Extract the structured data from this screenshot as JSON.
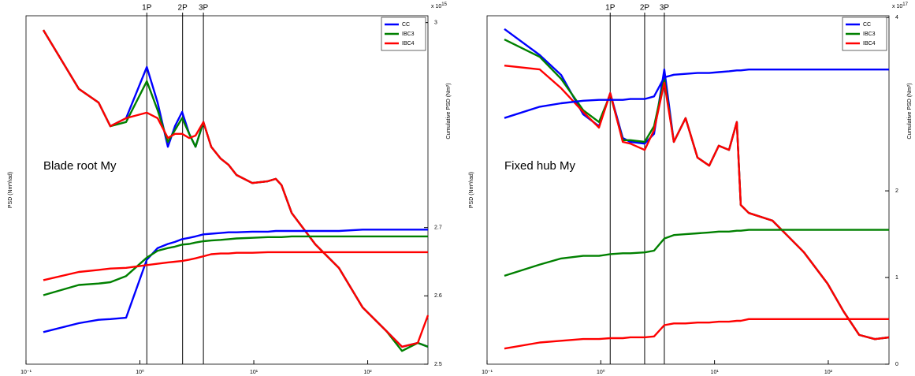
{
  "chart_data": [
    {
      "type": "line",
      "annotation": "Blade root My",
      "ylabel": "PSD (Nm²/rad)",
      "y2label": "Cumulative PSD (Nm²)",
      "y2_multiplier": "x 10",
      "y2_exponent": "15",
      "xscale": "log",
      "legend": "upper right",
      "xlim": [
        0.1,
        338
      ],
      "xticks": [
        {
          "value": 0.1,
          "label": "10⁻¹"
        },
        {
          "value": 1,
          "label": "10⁰"
        },
        {
          "value": 10,
          "label": "10¹"
        },
        {
          "value": 100,
          "label": "10²"
        }
      ],
      "ylim": [
        0,
        100
      ],
      "y2lim": [
        2.5,
        3.01
      ],
      "y2ticks": [
        2.5,
        2.6,
        2.7,
        3
      ],
      "vlines": [
        {
          "value": 1.15,
          "label": "1P"
        },
        {
          "value": 2.37,
          "label": "2P"
        },
        {
          "value": 3.61,
          "label": "3P"
        }
      ],
      "x": [
        0.142,
        0.291,
        0.434,
        0.55,
        0.757,
        1.15,
        1.43,
        1.76,
        2.03,
        2.35,
        2.71,
        3.08,
        3.61,
        4.23,
        5.12,
        6.01,
        7.05,
        9.69,
        13.3,
        15.6,
        17.5,
        21.5,
        34.7,
        55.9,
        90.2,
        146,
        200,
        275,
        338
      ],
      "series": [
        {
          "name": "CC",
          "color": "#0000ff",
          "values": [
            95.9,
            79.0,
            75.1,
            68.3,
            70.6,
            85.3,
            75.1,
            62.4,
            68.3,
            72.4,
            66.1,
            62.4,
            69.5,
            62.4,
            59.0,
            57.2,
            54.3,
            52.0,
            52.5,
            53.2,
            51.4,
            43.4,
            34.4,
            27.6,
            16.3,
            9.5,
            5.0,
            6.1,
            5.0
          ]
        },
        {
          "name": "IBC3",
          "color": "#008000",
          "values": [
            95.9,
            79.0,
            75.1,
            68.3,
            69.5,
            81.2,
            72.9,
            63.8,
            67.2,
            70.6,
            66.1,
            62.4,
            69.5,
            62.4,
            59.0,
            57.2,
            54.3,
            52.0,
            52.5,
            53.2,
            51.4,
            43.4,
            34.4,
            27.6,
            16.3,
            9.5,
            3.8,
            6.1,
            5.0
          ]
        },
        {
          "name": "IBC4",
          "color": "#ff0000",
          "values": [
            95.9,
            79.0,
            75.1,
            68.3,
            70.6,
            72.2,
            70.6,
            64.9,
            66.1,
            66.1,
            64.9,
            65.6,
            69.5,
            62.4,
            59.0,
            57.2,
            54.3,
            52.0,
            52.5,
            53.2,
            51.4,
            43.4,
            34.4,
            27.6,
            16.3,
            9.5,
            5.0,
            6.1,
            14.0
          ]
        },
        {
          "axis": "y2",
          "color": "#0000ff",
          "values": [
            2.547,
            2.56,
            2.565,
            2.566,
            2.568,
            2.653,
            2.67,
            2.676,
            2.679,
            2.683,
            2.685,
            2.687,
            2.69,
            2.691,
            2.692,
            2.693,
            2.693,
            2.694,
            2.694,
            2.695,
            2.695,
            2.695,
            2.695,
            2.695,
            2.697,
            2.697,
            2.697,
            2.697,
            2.697
          ]
        },
        {
          "axis": "y2",
          "color": "#008000",
          "values": [
            2.601,
            2.616,
            2.618,
            2.62,
            2.629,
            2.656,
            2.666,
            2.67,
            2.672,
            2.675,
            2.676,
            2.678,
            2.68,
            2.681,
            2.682,
            2.683,
            2.684,
            2.685,
            2.686,
            2.686,
            2.686,
            2.687,
            2.687,
            2.687,
            2.687,
            2.687,
            2.687,
            2.687,
            2.687
          ]
        },
        {
          "axis": "y2",
          "color": "#ff0000",
          "values": [
            2.623,
            2.635,
            2.638,
            2.64,
            2.641,
            2.645,
            2.647,
            2.649,
            2.65,
            2.651,
            2.653,
            2.655,
            2.658,
            2.661,
            2.662,
            2.662,
            2.663,
            2.663,
            2.664,
            2.664,
            2.664,
            2.664,
            2.664,
            2.664,
            2.664,
            2.664,
            2.664,
            2.664,
            2.664
          ]
        }
      ]
    },
    {
      "type": "line",
      "annotation": "Fixed hub My",
      "ylabel": "PSD (Nm²/rad)",
      "y2label": "Cumulative PSD (Nm²)",
      "y2_multiplier": "x 10",
      "y2_exponent": "17",
      "xscale": "log",
      "legend": "upper right",
      "xlim": [
        0.1,
        342
      ],
      "xticks": [
        {
          "value": 0.1,
          "label": "10⁻¹"
        },
        {
          "value": 1,
          "label": "10⁰"
        },
        {
          "value": 10,
          "label": "10¹"
        },
        {
          "value": 100,
          "label": "10²"
        }
      ],
      "ylim": [
        0,
        100
      ],
      "y2lim": [
        0,
        4.02
      ],
      "y2ticks": [
        0,
        1,
        2,
        4
      ],
      "vlines": [
        {
          "value": 1.21,
          "label": "1P"
        },
        {
          "value": 2.43,
          "label": "2P"
        },
        {
          "value": 3.62,
          "label": "3P"
        }
      ],
      "x": [
        0.142,
        0.291,
        0.448,
        0.7,
        0.964,
        1.21,
        1.56,
        1.82,
        2.43,
        2.94,
        3.62,
        4.39,
        5.57,
        7.08,
        8.99,
        10.9,
        13.4,
        15.7,
        17.0,
        20.0,
        32.3,
        44.4,
        61.1,
        98.6,
        136,
        187,
        257,
        342
      ],
      "series": [
        {
          "name": "CC",
          "color": "#0000ff",
          "values": [
            96.2,
            88.7,
            83.0,
            71.7,
            68.3,
            77.8,
            64.9,
            63.8,
            63.3,
            66.1,
            84.6,
            63.8,
            70.6,
            59.3,
            57.0,
            62.7,
            61.5,
            69.5,
            45.7,
            43.4,
            41.2,
            36.7,
            32.1,
            23.1,
            15.2,
            8.4,
            7.2,
            7.7
          ]
        },
        {
          "name": "IBC3",
          "color": "#008000",
          "values": [
            93.2,
            88.2,
            81.9,
            72.9,
            69.5,
            77.4,
            64.3,
            64.3,
            63.8,
            68.3,
            81.9,
            63.8,
            70.6,
            59.3,
            57.0,
            62.7,
            61.5,
            69.5,
            45.7,
            43.4,
            41.2,
            36.7,
            32.1,
            23.1,
            15.2,
            8.4,
            7.2,
            7.7
          ]
        },
        {
          "name": "IBC4",
          "color": "#ff0000",
          "values": [
            85.7,
            84.6,
            79.2,
            72.4,
            67.9,
            77.8,
            63.8,
            63.3,
            61.5,
            67.2,
            80.8,
            63.8,
            70.6,
            59.3,
            57.0,
            62.7,
            61.5,
            69.5,
            45.7,
            43.4,
            41.2,
            36.7,
            32.1,
            23.1,
            15.2,
            8.4,
            7.2,
            7.7
          ]
        },
        {
          "axis": "y2",
          "color": "#0000ff",
          "values": [
            2.84,
            2.97,
            3.01,
            3.04,
            3.05,
            3.05,
            3.05,
            3.06,
            3.06,
            3.09,
            3.31,
            3.34,
            3.35,
            3.36,
            3.36,
            3.37,
            3.38,
            3.39,
            3.39,
            3.4,
            3.4,
            3.4,
            3.4,
            3.4,
            3.4,
            3.4,
            3.4,
            3.4
          ]
        },
        {
          "axis": "y2",
          "color": "#008000",
          "values": [
            1.02,
            1.15,
            1.22,
            1.25,
            1.25,
            1.27,
            1.28,
            1.28,
            1.29,
            1.31,
            1.45,
            1.49,
            1.5,
            1.51,
            1.52,
            1.53,
            1.53,
            1.54,
            1.54,
            1.55,
            1.55,
            1.55,
            1.55,
            1.55,
            1.55,
            1.55,
            1.55,
            1.55
          ]
        },
        {
          "axis": "y2",
          "color": "#ff0000",
          "values": [
            0.18,
            0.25,
            0.27,
            0.29,
            0.29,
            0.3,
            0.3,
            0.31,
            0.31,
            0.32,
            0.45,
            0.47,
            0.47,
            0.48,
            0.48,
            0.49,
            0.49,
            0.5,
            0.5,
            0.52,
            0.52,
            0.52,
            0.52,
            0.52,
            0.52,
            0.52,
            0.52,
            0.52
          ]
        }
      ]
    }
  ]
}
